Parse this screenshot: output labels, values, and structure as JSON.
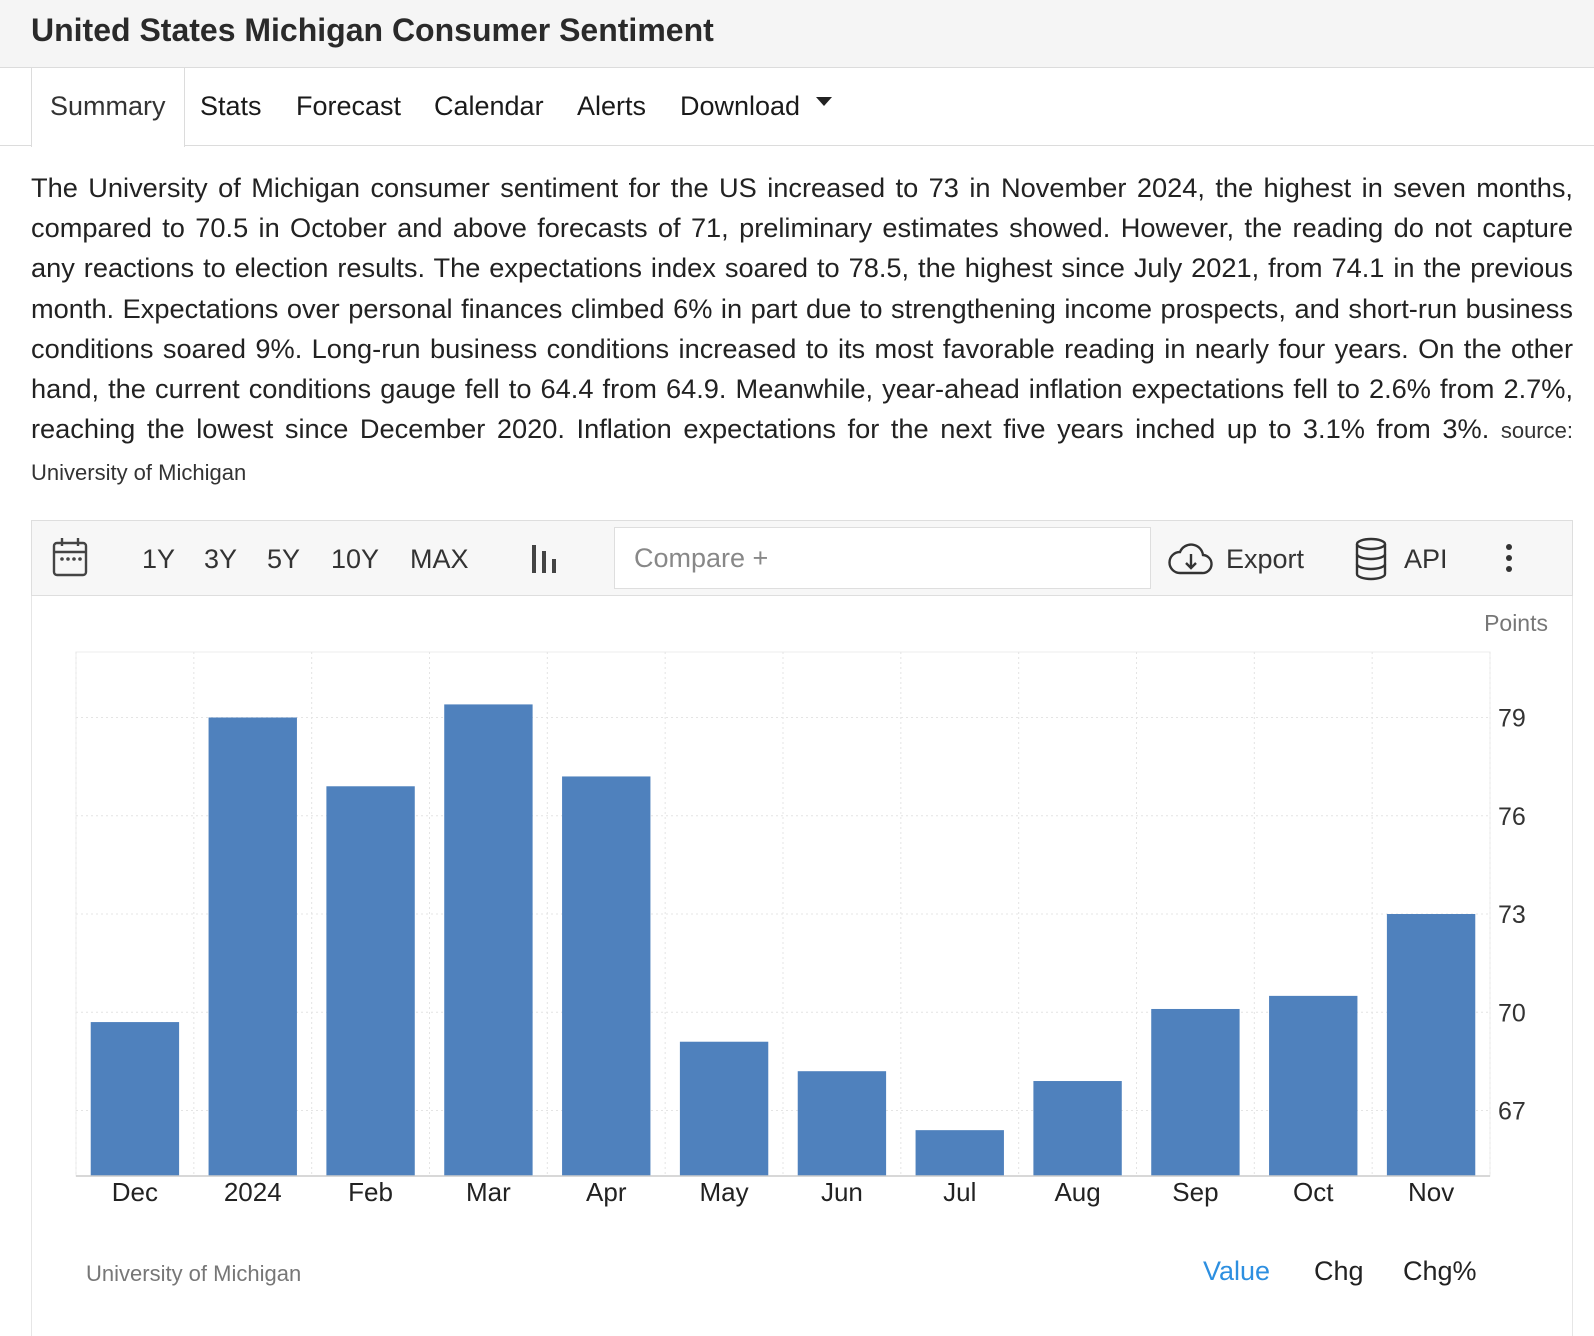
{
  "page_title": "United States Michigan Consumer Sentiment",
  "tabs": [
    {
      "label": "Summary"
    },
    {
      "label": "Stats"
    },
    {
      "label": "Forecast"
    },
    {
      "label": "Calendar"
    },
    {
      "label": "Alerts"
    },
    {
      "label": "Download"
    }
  ],
  "summary": {
    "text": "The University of Michigan consumer sentiment for the US increased to 73 in November 2024, the highest in seven months, compared to 70.5 in October and above forecasts of 71, preliminary estimates showed. However, the reading do not capture any reactions to election results. The expectations index soared to 78.5, the highest since July 2021, from 74.1 in the previous month. Expectations over personal finances climbed 6% in part due to strengthening income prospects, and short-run business conditions soared 9%. Long-run business conditions increased to its most favorable reading in nearly four years. On the other hand, the current conditions gauge fell to 64.4 from 64.9. Meanwhile, year-ahead inflation expectations fell to 2.6% from 2.7%, reaching the lowest since December 2020. Inflation expectations for the next five years inched up to 3.1% from 3%.",
    "source": "source: University of Michigan"
  },
  "toolbar": {
    "ranges": [
      "1Y",
      "3Y",
      "5Y",
      "10Y",
      "MAX"
    ],
    "compare_placeholder": "Compare +",
    "export_label": "Export",
    "api_label": "API",
    "icons": {
      "calendar": "calendar-icon",
      "chart_type": "bar-chart-icon",
      "export": "cloud-download-icon",
      "api": "database-icon",
      "more": "more-vertical-icon"
    }
  },
  "chart_data": {
    "type": "bar",
    "title": "United States Michigan Consumer Sentiment",
    "unit": "Points",
    "categories": [
      "Dec",
      "2024",
      "Feb",
      "Mar",
      "Apr",
      "May",
      "Jun",
      "Jul",
      "Aug",
      "Sep",
      "Oct",
      "Nov"
    ],
    "values": [
      69.7,
      79.0,
      76.9,
      79.4,
      77.2,
      69.1,
      68.2,
      66.4,
      67.9,
      70.1,
      70.5,
      73.0
    ],
    "ylim": [
      65.0,
      81.0
    ],
    "yticks": [
      67,
      70,
      73,
      76,
      79
    ],
    "y_axis_side": "right",
    "bar_color": "#4f81bd",
    "grid": true,
    "source": "University of Michigan"
  },
  "view_options": [
    {
      "label": "Value",
      "active": true
    },
    {
      "label": "Chg",
      "active": false
    },
    {
      "label": "Chg%",
      "active": false
    }
  ],
  "colors": {
    "accent": "#2d8fe0",
    "bar": "#4f81bd"
  }
}
